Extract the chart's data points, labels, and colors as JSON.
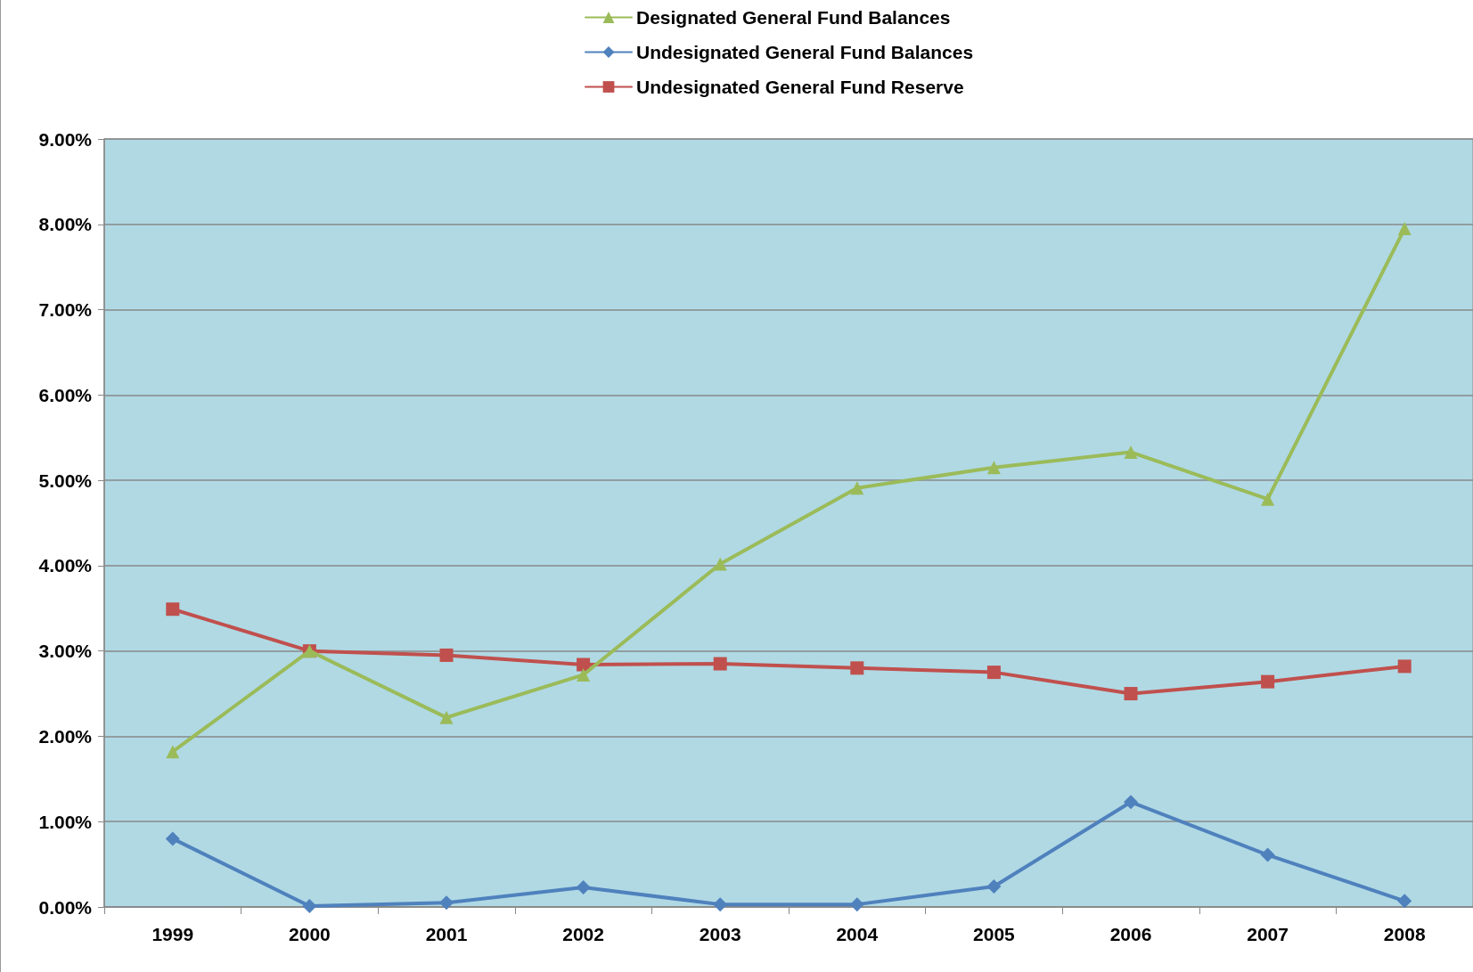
{
  "chart_data": {
    "type": "line",
    "categories": [
      "1999",
      "2000",
      "2001",
      "2002",
      "2003",
      "2004",
      "2005",
      "2006",
      "2007",
      "2008"
    ],
    "series": [
      {
        "name": "Designated General Fund Balances",
        "color": "#9bbb59",
        "marker": "triangle",
        "values": [
          1.82,
          3.0,
          2.22,
          2.72,
          4.02,
          4.91,
          5.15,
          5.33,
          4.78,
          7.95
        ]
      },
      {
        "name": "Undesignated General Fund Balances",
        "color": "#4f81bd",
        "marker": "diamond",
        "values": [
          0.8,
          0.01,
          0.05,
          0.23,
          0.03,
          0.03,
          0.24,
          1.23,
          0.61,
          0.07
        ]
      },
      {
        "name": "Undesignated General Fund Reserve",
        "color": "#c0504d",
        "marker": "square",
        "values": [
          3.49,
          3.0,
          2.95,
          2.84,
          2.85,
          2.8,
          2.75,
          2.5,
          2.64,
          2.82
        ]
      }
    ],
    "ylim": [
      0,
      9
    ],
    "yticks": [
      {
        "value": 0,
        "label": "0.00%"
      },
      {
        "value": 1,
        "label": "1.00%"
      },
      {
        "value": 2,
        "label": "2.00%"
      },
      {
        "value": 3,
        "label": "3.00%"
      },
      {
        "value": 4,
        "label": "4.00%"
      },
      {
        "value": 5,
        "label": "5.00%"
      },
      {
        "value": 6,
        "label": "6.00%"
      },
      {
        "value": 7,
        "label": "7.00%"
      },
      {
        "value": 8,
        "label": "8.00%"
      },
      {
        "value": 9,
        "label": "9.00%"
      }
    ],
    "grid": "y",
    "legend": "top",
    "line_style": "solid"
  }
}
